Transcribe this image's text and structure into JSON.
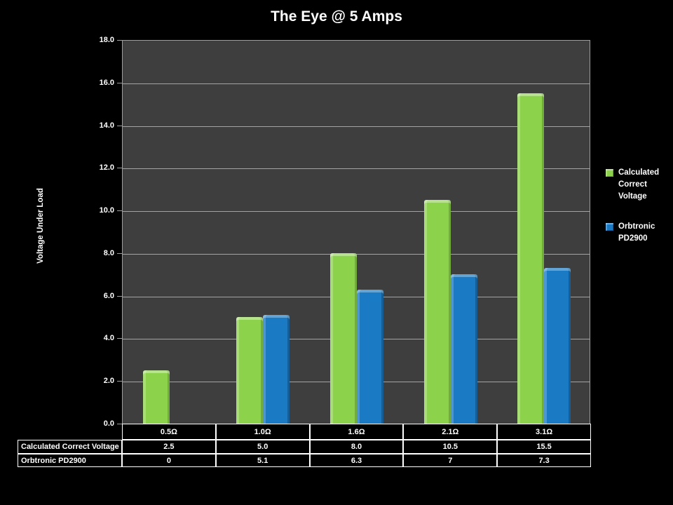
{
  "title": "The Eye @ 5 Amps",
  "chart_data": {
    "type": "bar",
    "title": "The Eye @ 5 Amps",
    "xlabel": "",
    "ylabel": "Voltage Under Load",
    "categories": [
      "0.5Ω",
      "1.0Ω",
      "1.6Ω",
      "2.1Ω",
      "3.1Ω"
    ],
    "series": [
      {
        "name": "Calculated Correct Voltage",
        "color": "#8CD24B",
        "values": [
          2.5,
          5.0,
          8.0,
          10.5,
          15.5
        ],
        "table_labels": [
          "2.5",
          "5.0",
          "8.0",
          "10.5",
          "15.5"
        ]
      },
      {
        "name": "Orbtronic PD2900",
        "color": "#1A7AC4",
        "values": [
          0,
          5.1,
          6.3,
          7,
          7.3
        ],
        "table_labels": [
          "0",
          "5.1",
          "6.3",
          "7",
          "7.3"
        ]
      }
    ],
    "ylim": [
      0,
      18
    ],
    "ytick_step": 2,
    "ytick_labels": [
      "0.0",
      "2.0",
      "4.0",
      "6.0",
      "8.0",
      "10.0",
      "12.0",
      "14.0",
      "16.0",
      "18.0"
    ],
    "grid": true,
    "legend_position": "right",
    "data_table_shown": true
  },
  "colors": {
    "background": "#000000",
    "plot_background": "#3E3E3E",
    "gridline": "#A3A3A3",
    "axis_line": "#9E9E9E",
    "table_border": "#FFFFFF",
    "text": "#FFFFFF",
    "series_green": "#8CD24B",
    "series_blue": "#1A7AC4"
  }
}
